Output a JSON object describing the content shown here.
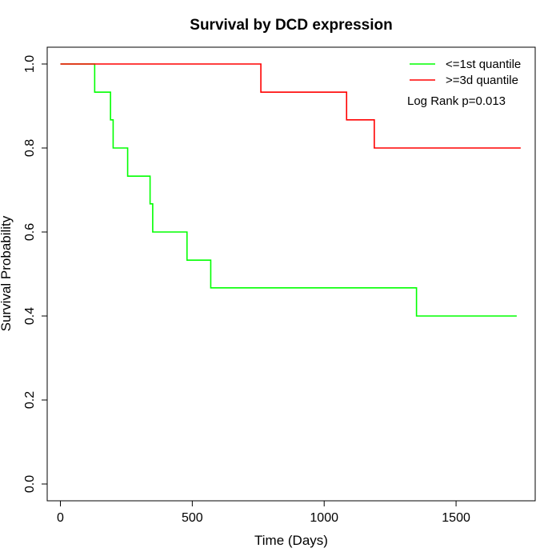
{
  "chart_data": {
    "type": "line",
    "subtype": "kaplan-meier-step",
    "title": "Survival by DCD expression",
    "xlabel": "Time (Days)",
    "ylabel": "Survival Probability",
    "xlim": [
      -50,
      1800
    ],
    "ylim": [
      -0.04,
      1.04
    ],
    "x_ticks": [
      0,
      500,
      1000,
      1500
    ],
    "y_ticks": [
      0.0,
      0.2,
      0.4,
      0.6,
      0.8,
      1.0
    ],
    "x_tick_labels": [
      "0",
      "500",
      "1000",
      "1500"
    ],
    "y_tick_labels": [
      "0.0",
      "0.2",
      "0.4",
      "0.6",
      "0.8",
      "1.0"
    ],
    "grid": false,
    "legend_position": "top-right",
    "annotation": "Log Rank p=0.013",
    "series": [
      {
        "name": "<=1st quantile",
        "color": "#00ff00",
        "x": [
          0,
          130,
          190,
          200,
          255,
          340,
          350,
          480,
          570,
          1350,
          1730
        ],
        "y": [
          1.0,
          0.933,
          0.867,
          0.8,
          0.733,
          0.667,
          0.6,
          0.533,
          0.467,
          0.4,
          0.4
        ]
      },
      {
        "name": ">=3d quantile",
        "color": "#ff0000",
        "x": [
          0,
          760,
          1085,
          1190,
          1745
        ],
        "y": [
          1.0,
          0.933,
          0.867,
          0.8,
          0.8
        ]
      }
    ]
  }
}
